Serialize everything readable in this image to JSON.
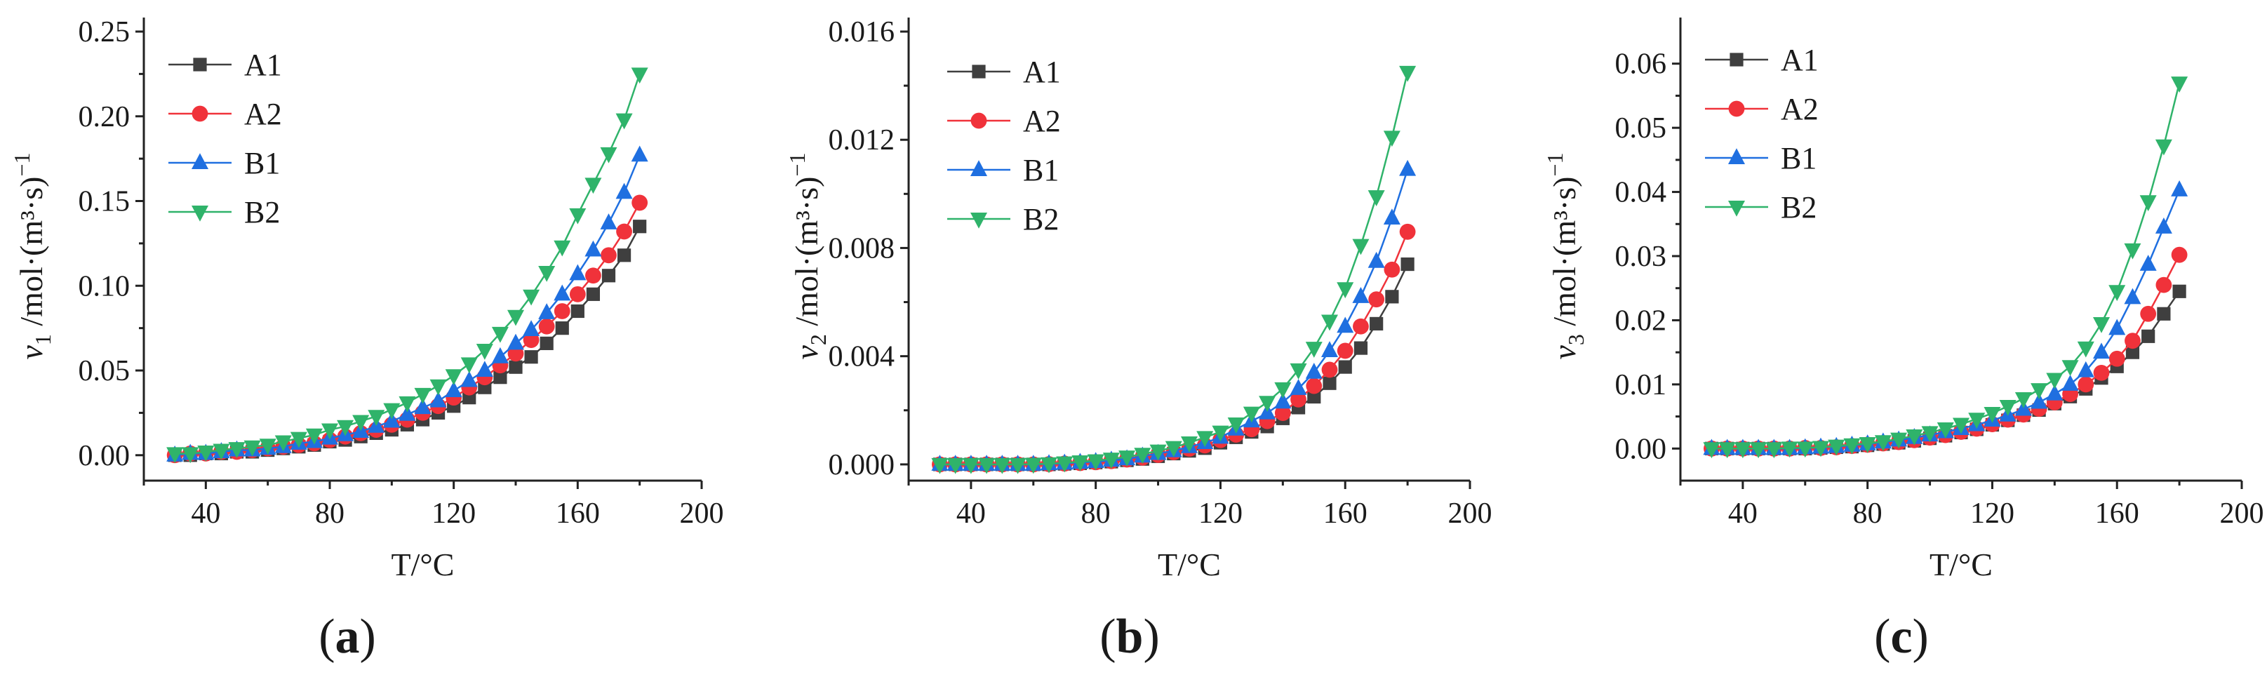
{
  "figure": {
    "panel_labels": [
      "a",
      "b",
      "c"
    ]
  },
  "colors": {
    "A1": "#3f3f3f",
    "A2": "#f0323a",
    "B1": "#1f6fe0",
    "B2": "#2fb36a",
    "axis": "#222222"
  },
  "chart_data": [
    {
      "type": "line",
      "panel": "a",
      "xlabel": "T/°C",
      "ylabel": "v1 /mol·(m³·s)−1",
      "ylabel_parts": {
        "var": "v",
        "sub": "1",
        "unit": " /mol·(m³·s)",
        "exp": "−1"
      },
      "xlim": [
        20,
        200
      ],
      "ylim": [
        -0.015,
        0.25
      ],
      "xticks": [
        40,
        80,
        120,
        160,
        200
      ],
      "yticks": [
        0.0,
        0.05,
        0.1,
        0.15,
        0.2,
        0.25
      ],
      "yticklabels": [
        "0.00",
        "0.05",
        "0.10",
        "0.15",
        "0.20",
        "0.25"
      ],
      "x": [
        30,
        35,
        40,
        45,
        50,
        55,
        60,
        65,
        70,
        75,
        80,
        85,
        90,
        95,
        100,
        105,
        110,
        115,
        120,
        125,
        130,
        135,
        140,
        145,
        150,
        155,
        160,
        165,
        170,
        175,
        180
      ],
      "series": [
        {
          "name": "A1",
          "marker": "square",
          "values": [
            0.0,
            0.0,
            0.001,
            0.001,
            0.002,
            0.002,
            0.003,
            0.004,
            0.005,
            0.006,
            0.008,
            0.009,
            0.011,
            0.013,
            0.015,
            0.018,
            0.021,
            0.025,
            0.029,
            0.034,
            0.04,
            0.046,
            0.052,
            0.058,
            0.066,
            0.075,
            0.085,
            0.095,
            0.106,
            0.118,
            0.135
          ]
        },
        {
          "name": "A2",
          "marker": "circle",
          "values": [
            0.0,
            0.001,
            0.001,
            0.002,
            0.002,
            0.003,
            0.004,
            0.005,
            0.006,
            0.007,
            0.009,
            0.011,
            0.013,
            0.015,
            0.018,
            0.021,
            0.025,
            0.029,
            0.034,
            0.04,
            0.046,
            0.053,
            0.06,
            0.068,
            0.076,
            0.085,
            0.095,
            0.106,
            0.118,
            0.132,
            0.149
          ]
        },
        {
          "name": "B1",
          "marker": "triangle-up",
          "values": [
            0.0,
            0.001,
            0.001,
            0.002,
            0.003,
            0.003,
            0.004,
            0.005,
            0.007,
            0.008,
            0.01,
            0.012,
            0.014,
            0.017,
            0.02,
            0.024,
            0.028,
            0.032,
            0.038,
            0.044,
            0.05,
            0.058,
            0.066,
            0.074,
            0.084,
            0.095,
            0.107,
            0.121,
            0.137,
            0.155,
            0.177
          ]
        },
        {
          "name": "B2",
          "marker": "triangle-down",
          "values": [
            0.001,
            0.001,
            0.002,
            0.003,
            0.004,
            0.005,
            0.006,
            0.008,
            0.01,
            0.012,
            0.015,
            0.017,
            0.02,
            0.023,
            0.027,
            0.031,
            0.036,
            0.041,
            0.047,
            0.054,
            0.062,
            0.072,
            0.082,
            0.094,
            0.108,
            0.123,
            0.142,
            0.16,
            0.178,
            0.198,
            0.225
          ]
        }
      ]
    },
    {
      "type": "line",
      "panel": "b",
      "xlabel": "T/°C",
      "ylabel": "v2 /mol·(m³·s)−1",
      "ylabel_parts": {
        "var": "v",
        "sub": "2",
        "unit": " /mol·(m³·s)",
        "exp": "−1"
      },
      "xlim": [
        20,
        200
      ],
      "ylim": [
        -0.0006,
        0.016
      ],
      "xticks": [
        40,
        80,
        120,
        160,
        200
      ],
      "yticks": [
        0.0,
        0.004,
        0.008,
        0.012,
        0.016
      ],
      "yticklabels": [
        "0.000",
        "0.004",
        "0.008",
        "0.012",
        "0.016"
      ],
      "x": [
        30,
        35,
        40,
        45,
        50,
        55,
        60,
        65,
        70,
        75,
        80,
        85,
        90,
        95,
        100,
        105,
        110,
        115,
        120,
        125,
        130,
        135,
        140,
        145,
        150,
        155,
        160,
        165,
        170,
        175,
        180
      ],
      "series": [
        {
          "name": "A1",
          "marker": "square",
          "values": [
            0.0,
            0.0,
            0.0,
            0.0,
            0.0,
            0.0,
            0.0,
            0.0,
            2e-05,
            4e-05,
            7e-05,
            0.0001,
            0.00015,
            0.0002,
            0.0003,
            0.0004,
            0.0005,
            0.0006,
            0.0008,
            0.001,
            0.0012,
            0.0014,
            0.0017,
            0.0021,
            0.0025,
            0.003,
            0.0036,
            0.0043,
            0.0052,
            0.0062,
            0.0074
          ]
        },
        {
          "name": "A2",
          "marker": "circle",
          "values": [
            0.0,
            0.0,
            0.0,
            0.0,
            0.0,
            0.0,
            0.0,
            1e-05,
            3e-05,
            5e-05,
            8e-05,
            0.00012,
            0.00018,
            0.00025,
            0.00035,
            0.00045,
            0.00058,
            0.0007,
            0.0009,
            0.0011,
            0.0013,
            0.0016,
            0.0019,
            0.0024,
            0.0029,
            0.0035,
            0.0042,
            0.0051,
            0.0061,
            0.0072,
            0.0086
          ]
        },
        {
          "name": "B1",
          "marker": "triangle-up",
          "values": [
            0.0,
            0.0,
            0.0,
            0.0,
            0.0,
            0.0,
            0.0,
            2e-05,
            4e-05,
            7e-05,
            0.0001,
            0.00015,
            0.0002,
            0.0003,
            0.0004,
            0.0005,
            0.00065,
            0.0008,
            0.001,
            0.0013,
            0.0016,
            0.0019,
            0.0023,
            0.0028,
            0.0034,
            0.0042,
            0.0051,
            0.0062,
            0.0075,
            0.0091,
            0.0109
          ]
        },
        {
          "name": "B2",
          "marker": "triangle-down",
          "values": [
            0.0,
            0.0,
            0.0,
            0.0,
            0.0,
            0.0,
            1e-05,
            3e-05,
            6e-05,
            0.0001,
            0.00014,
            0.0002,
            0.00028,
            0.00038,
            0.0005,
            0.00063,
            0.0008,
            0.001,
            0.0012,
            0.0015,
            0.0019,
            0.0023,
            0.0028,
            0.0035,
            0.0043,
            0.0053,
            0.0065,
            0.0081,
            0.0099,
            0.0121,
            0.0145
          ]
        }
      ]
    },
    {
      "type": "line",
      "panel": "c",
      "xlabel": "T/°C",
      "ylabel": "v3 /mol·(m³·s)−1",
      "ylabel_parts": {
        "var": "v",
        "sub": "3",
        "unit": " /mol·(m³·s)",
        "exp": "−1"
      },
      "xlim": [
        20,
        200
      ],
      "ylim": [
        -0.005,
        0.065
      ],
      "xticks": [
        40,
        80,
        120,
        160,
        200
      ],
      "yticks": [
        0.0,
        0.01,
        0.02,
        0.03,
        0.04,
        0.05,
        0.06
      ],
      "yticklabels": [
        "0.00",
        "0.01",
        "0.02",
        "0.03",
        "0.04",
        "0.05",
        "0.06"
      ],
      "x": [
        30,
        35,
        40,
        45,
        50,
        55,
        60,
        65,
        70,
        75,
        80,
        85,
        90,
        95,
        100,
        105,
        110,
        115,
        120,
        125,
        130,
        135,
        140,
        145,
        150,
        155,
        160,
        165,
        170,
        175,
        180
      ],
      "series": [
        {
          "name": "A1",
          "marker": "square",
          "values": [
            0.0,
            0.0,
            0.0,
            0.0,
            0.0,
            0.0,
            0.0,
            0.0001,
            0.0002,
            0.0003,
            0.0005,
            0.0007,
            0.0009,
            0.0012,
            0.0016,
            0.002,
            0.0025,
            0.003,
            0.0037,
            0.0044,
            0.0052,
            0.006,
            0.007,
            0.0081,
            0.0093,
            0.011,
            0.0128,
            0.015,
            0.0175,
            0.021,
            0.0245
          ]
        },
        {
          "name": "A2",
          "marker": "circle",
          "values": [
            0.0,
            0.0,
            0.0,
            0.0,
            0.0,
            0.0,
            0.0001,
            0.0001,
            0.0002,
            0.0004,
            0.0006,
            0.0008,
            0.001,
            0.0013,
            0.0017,
            0.0021,
            0.0026,
            0.0031,
            0.0038,
            0.0045,
            0.0053,
            0.0062,
            0.0072,
            0.0085,
            0.01,
            0.0118,
            0.014,
            0.0168,
            0.021,
            0.0255,
            0.0302
          ]
        },
        {
          "name": "B1",
          "marker": "triangle-up",
          "values": [
            0.0,
            0.0,
            0.0,
            0.0,
            0.0,
            0.0,
            0.0001,
            0.0002,
            0.0003,
            0.0005,
            0.0007,
            0.001,
            0.0013,
            0.0017,
            0.0021,
            0.0026,
            0.0031,
            0.0037,
            0.0044,
            0.0052,
            0.0061,
            0.0072,
            0.0085,
            0.01,
            0.0121,
            0.015,
            0.0187,
            0.0235,
            0.0287,
            0.0345,
            0.0403
          ]
        },
        {
          "name": "B2",
          "marker": "triangle-down",
          "values": [
            0.0,
            0.0,
            0.0,
            0.0,
            0.0,
            0.0001,
            0.0001,
            0.0002,
            0.0004,
            0.0006,
            0.0008,
            0.0011,
            0.0015,
            0.002,
            0.0025,
            0.0031,
            0.0038,
            0.0046,
            0.0055,
            0.0066,
            0.0078,
            0.0092,
            0.0108,
            0.0128,
            0.0157,
            0.0195,
            0.0245,
            0.031,
            0.0385,
            0.0472,
            0.057
          ]
        }
      ]
    }
  ]
}
